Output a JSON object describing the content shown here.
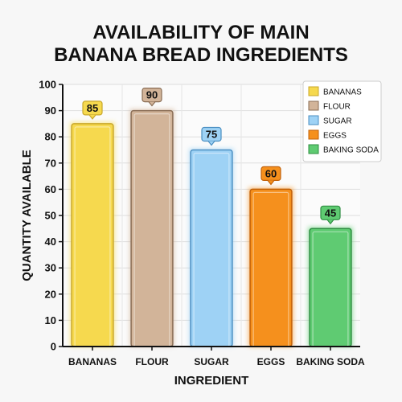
{
  "chart_data": {
    "type": "bar",
    "title_lines": [
      "AVAILABILITY OF MAIN",
      "BANANA BREAD INGREDIENTS"
    ],
    "xlabel": "INGREDIENT",
    "ylabel": "QUANTITY AVAILABLE",
    "categories": [
      "BANANAS",
      "FLOUR",
      "SUGAR",
      "EGGS",
      "BAKING SODA"
    ],
    "values": [
      85,
      90,
      75,
      60,
      45
    ],
    "colors": [
      "#f6d94e",
      "#d2b499",
      "#9ed2f5",
      "#f5901d",
      "#5fcb72"
    ],
    "edge_colors": [
      "#c9a82a",
      "#8a6d55",
      "#4b8fc2",
      "#c2620a",
      "#2f8f42"
    ],
    "ylim": [
      0,
      100
    ],
    "yticks": [
      0,
      10,
      20,
      30,
      40,
      50,
      60,
      70,
      80,
      90,
      100
    ],
    "grid": true,
    "legend_position": "top-right",
    "data_labels": true
  }
}
